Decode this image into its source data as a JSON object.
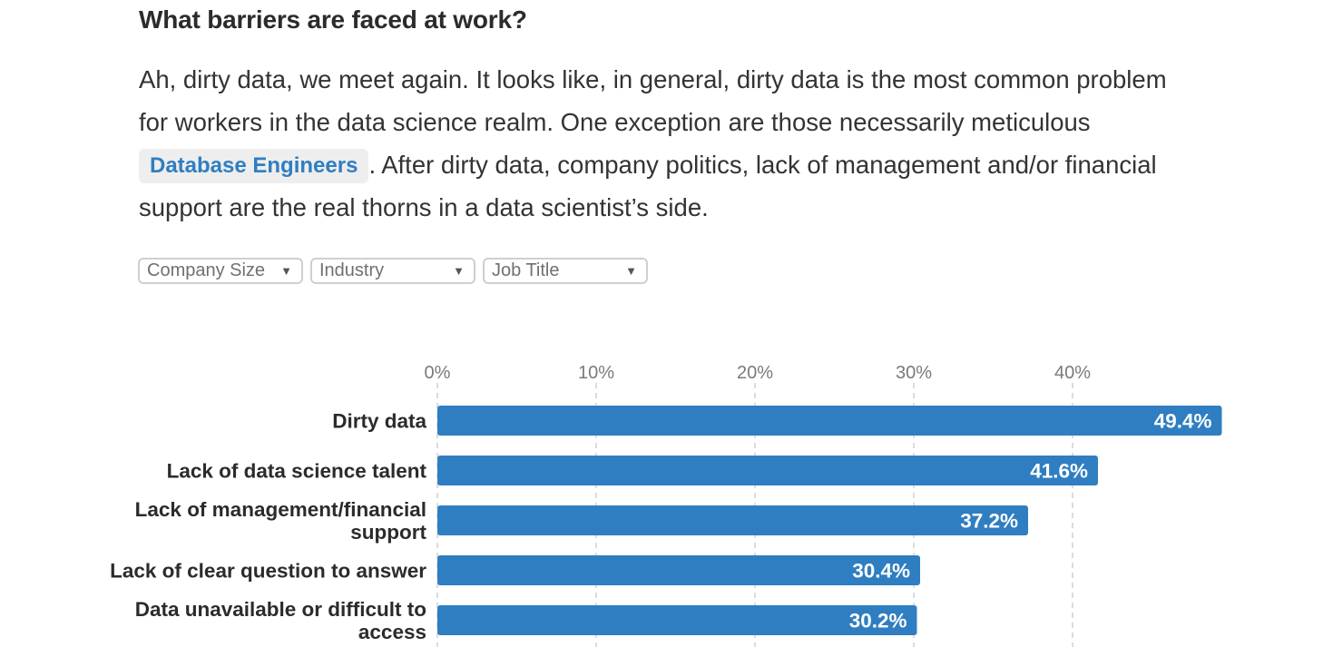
{
  "heading": "What barriers are faced at work?",
  "paragraph": {
    "before_chip": "Ah, dirty data, we meet again. It looks like, in general, dirty data is the most common problem for workers in the data science realm. One exception are those necessarily meticulous ",
    "chip": "Database Engineers",
    "after_chip": ". After dirty data, company politics, lack of management and/or financial support are the real thorns in a data scientist’s side."
  },
  "filters": [
    {
      "label": "Company Size",
      "icon": "caret-down-icon"
    },
    {
      "label": "Industry",
      "icon": "caret-down-icon"
    },
    {
      "label": "Job Title",
      "icon": "caret-down-icon"
    }
  ],
  "colors": {
    "bar": "#2f7ec1",
    "chip_text": "#2f7ec1",
    "grid": "#d0d0d0"
  },
  "chart_data": {
    "type": "bar",
    "orientation": "horizontal",
    "title": "",
    "xlabel": "",
    "ylabel": "",
    "xlim": [
      0,
      50
    ],
    "ticks": [
      0,
      10,
      20,
      30,
      40
    ],
    "tick_labels": [
      "0%",
      "10%",
      "20%",
      "30%",
      "40%"
    ],
    "grid": true,
    "categories": [
      [
        "Dirty data"
      ],
      [
        "Lack of data science talent"
      ],
      [
        "Lack of management/financial",
        "support"
      ],
      [
        "Lack of clear question to answer"
      ],
      [
        "Data unavailable or difficult to",
        "access"
      ]
    ],
    "values": [
      49.4,
      41.6,
      37.2,
      30.4,
      30.2
    ],
    "value_labels": [
      "49.4%",
      "41.6%",
      "37.2%",
      "30.4%",
      "30.2%"
    ]
  }
}
